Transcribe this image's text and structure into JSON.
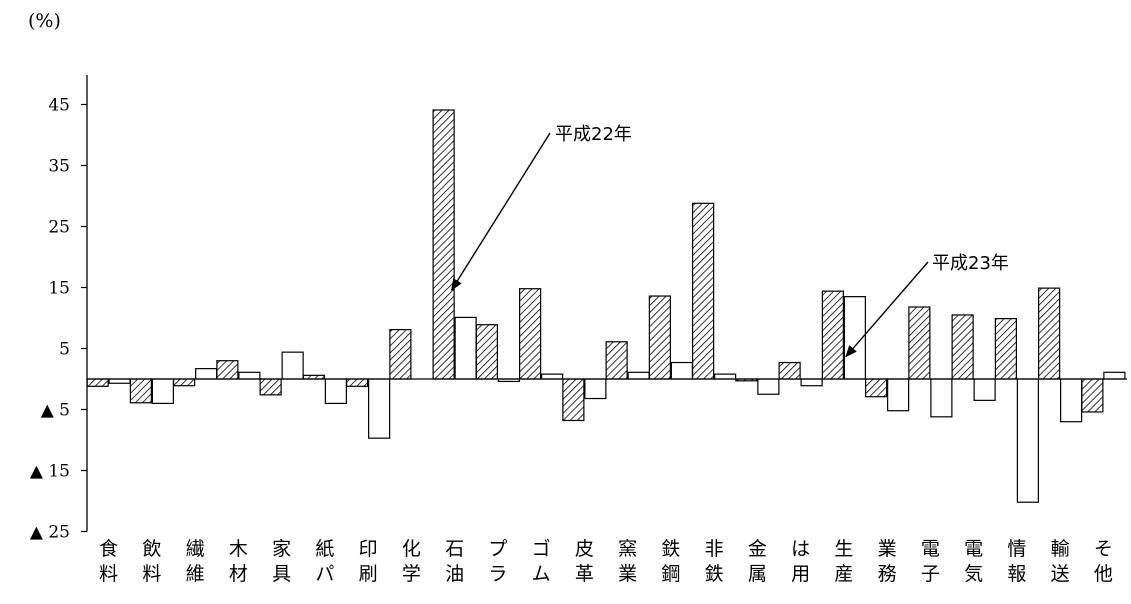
{
  "chart_data": {
    "type": "bar",
    "unit_label": "(%)",
    "categories": [
      [
        "食",
        "料"
      ],
      [
        "飲",
        "料"
      ],
      [
        "繊",
        "維"
      ],
      [
        "木",
        "材"
      ],
      [
        "家",
        "具"
      ],
      [
        "紙",
        "パ"
      ],
      [
        "印",
        "刷"
      ],
      [
        "化",
        "学"
      ],
      [
        "石",
        "油"
      ],
      [
        "プ",
        "ラ"
      ],
      [
        "ゴ",
        "ム"
      ],
      [
        "皮",
        "革"
      ],
      [
        "窯",
        "業"
      ],
      [
        "鉄",
        "鋼"
      ],
      [
        "非",
        "鉄"
      ],
      [
        "金",
        "属"
      ],
      [
        "は",
        "用"
      ],
      [
        "生",
        "産"
      ],
      [
        "業",
        "務"
      ],
      [
        "電",
        "子"
      ],
      [
        "電",
        "気"
      ],
      [
        "情",
        "報"
      ],
      [
        "輸",
        "送"
      ],
      [
        "そ",
        "他"
      ]
    ],
    "series": [
      {
        "name": "平成22年",
        "pattern": "hatched",
        "values": [
          -1.2,
          -3.9,
          -1.1,
          3.0,
          -2.6,
          0.6,
          -1.2,
          8.1,
          44.1,
          8.9,
          14.8,
          -6.8,
          6.1,
          13.6,
          28.8,
          -0.3,
          2.7,
          14.4,
          -2.9,
          11.8,
          10.5,
          9.9,
          14.9,
          -5.4
        ]
      },
      {
        "name": "平成23年",
        "pattern": "white",
        "values": [
          -0.7,
          -4.0,
          1.7,
          1.1,
          4.4,
          -4.0,
          -9.7,
          null,
          10.1,
          -0.4,
          0.8,
          -3.2,
          1.1,
          2.7,
          0.8,
          -2.5,
          -1.1,
          13.5,
          -5.2,
          -6.2,
          -3.5,
          -20.2,
          -7.0,
          1.1
        ]
      }
    ],
    "ylim": [
      -25,
      50
    ],
    "yticks": [
      {
        "value": 45,
        "label": "45"
      },
      {
        "value": 35,
        "label": "35"
      },
      {
        "value": 25,
        "label": "25"
      },
      {
        "value": 15,
        "label": "15"
      },
      {
        "value": 5,
        "label": "5"
      },
      {
        "value": -5,
        "label": "▲ 5"
      },
      {
        "value": -15,
        "label": "▲ 15"
      },
      {
        "value": -25,
        "label": "▲ 25"
      }
    ],
    "annotations": [
      {
        "text": "平成22年",
        "series": "平成22年",
        "category_index": 8
      },
      {
        "text": "平成23年",
        "series": "平成23年",
        "category_index": 17
      }
    ]
  }
}
